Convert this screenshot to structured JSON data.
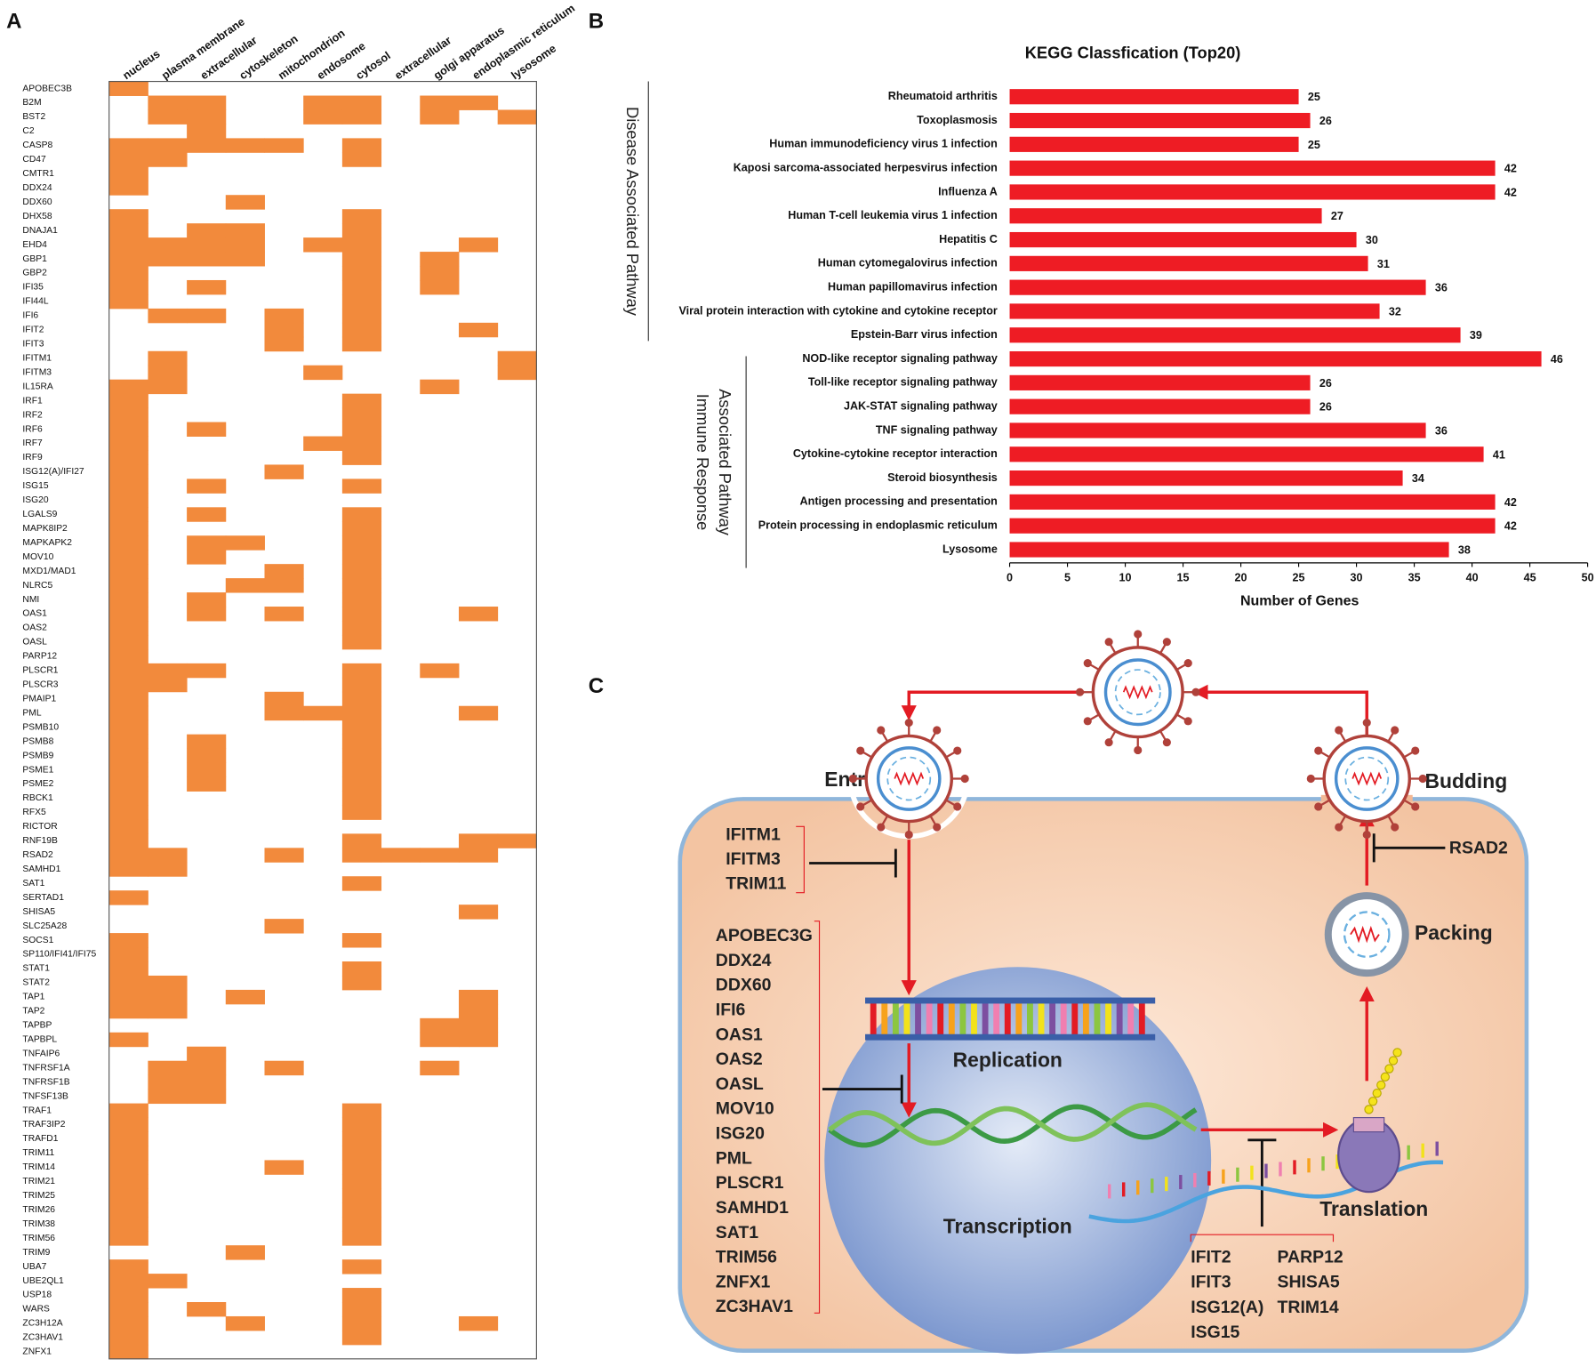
{
  "panel_labels": [
    "A",
    "B",
    "C"
  ],
  "chart_data": [
    {
      "type": "heatmap",
      "columns": [
        "nucleus",
        "plasma membrane",
        "extracellular",
        "cytoskeleton",
        "mitochondrion",
        "endosome",
        "cytosol",
        "extracellular",
        "golgi apparatus",
        "endoplasmic reticulum",
        "lysosome"
      ],
      "rows": [
        "APOBEC3B",
        "B2M",
        "BST2",
        "C2",
        "CASP8",
        "CD47",
        "CMTR1",
        "DDX24",
        "DDX60",
        "DHX58",
        "DNAJA1",
        "EHD4",
        "GBP1",
        "GBP2",
        "IFI35",
        "IFI44L",
        "IFI6",
        "IFIT2",
        "IFIT3",
        "IFITM1",
        "IFITM3",
        "IL15RA",
        "IRF1",
        "IRF2",
        "IRF6",
        "IRF7",
        "IRF9",
        "ISG12(A)/IFI27",
        "ISG15",
        "ISG20",
        "LGALS9",
        "MAPK8IP2",
        "MAPKAPK2",
        "MOV10",
        "MXD1/MAD1",
        "NLRC5",
        "NMI",
        "OAS1",
        "OAS2",
        "OASL",
        "PARP12",
        "PLSCR1",
        "PLSCR3",
        "PMAIP1",
        "PML",
        "PSMB10",
        "PSMB8",
        "PSMB9",
        "PSME1",
        "PSME2",
        "RBCK1",
        "RFX5",
        "RICTOR",
        "RNF19B",
        "RSAD2",
        "SAMHD1",
        "SAT1",
        "SERTAD1",
        "SHISA5",
        "SLC25A28",
        "SOCS1",
        "SP110/IFI41/IFI75",
        "STAT1",
        "STAT2",
        "TAP1",
        "TAP2",
        "TAPBP",
        "TAPBPL",
        "TNFAIP6",
        "TNFRSF1A",
        "TNFRSF1B",
        "TNFSF13B",
        "TRAF1",
        "TRAF3IP2",
        "TRAFD1",
        "TRIM11",
        "TRIM14",
        "TRIM21",
        "TRIM25",
        "TRIM26",
        "TRIM38",
        "TRIM56",
        "TRIM9",
        "UBA7",
        "UBE2QL1",
        "USP18",
        "WARS",
        "ZC3H12A",
        "ZC3HAV1",
        "ZNFX1"
      ],
      "values": [
        [
          1,
          0,
          0,
          0,
          0,
          0,
          0,
          0,
          0,
          0,
          0
        ],
        [
          0,
          1,
          1,
          0,
          0,
          1,
          1,
          0,
          1,
          1,
          0
        ],
        [
          0,
          1,
          1,
          0,
          0,
          1,
          1,
          0,
          1,
          0,
          1
        ],
        [
          0,
          0,
          1,
          0,
          0,
          0,
          0,
          0,
          0,
          0,
          0
        ],
        [
          1,
          1,
          1,
          1,
          1,
          0,
          1,
          0,
          0,
          0,
          0
        ],
        [
          1,
          1,
          0,
          0,
          0,
          0,
          1,
          0,
          0,
          0,
          0
        ],
        [
          1,
          0,
          0,
          0,
          0,
          0,
          0,
          0,
          0,
          0,
          0
        ],
        [
          1,
          0,
          0,
          0,
          0,
          0,
          0,
          0,
          0,
          0,
          0
        ],
        [
          0,
          0,
          0,
          1,
          0,
          0,
          0,
          0,
          0,
          0,
          0
        ],
        [
          1,
          0,
          0,
          0,
          0,
          0,
          1,
          0,
          0,
          0,
          0
        ],
        [
          1,
          0,
          1,
          1,
          0,
          0,
          1,
          0,
          0,
          0,
          0
        ],
        [
          1,
          1,
          1,
          1,
          0,
          1,
          1,
          0,
          0,
          1,
          0
        ],
        [
          1,
          1,
          1,
          1,
          0,
          0,
          1,
          0,
          1,
          0,
          0
        ],
        [
          1,
          0,
          0,
          0,
          0,
          0,
          1,
          0,
          1,
          0,
          0
        ],
        [
          1,
          0,
          1,
          0,
          0,
          0,
          1,
          0,
          1,
          0,
          0
        ],
        [
          1,
          0,
          0,
          0,
          0,
          0,
          1,
          0,
          0,
          0,
          0
        ],
        [
          0,
          1,
          1,
          0,
          1,
          0,
          1,
          0,
          0,
          0,
          0
        ],
        [
          0,
          0,
          0,
          0,
          1,
          0,
          1,
          0,
          0,
          1,
          0
        ],
        [
          0,
          0,
          0,
          0,
          1,
          0,
          1,
          0,
          0,
          0,
          0
        ],
        [
          0,
          1,
          0,
          0,
          0,
          0,
          0,
          0,
          0,
          0,
          1
        ],
        [
          0,
          1,
          0,
          0,
          0,
          1,
          0,
          0,
          0,
          0,
          1
        ],
        [
          1,
          1,
          0,
          0,
          0,
          0,
          0,
          0,
          1,
          0,
          0
        ],
        [
          1,
          0,
          0,
          0,
          0,
          0,
          1,
          0,
          0,
          0,
          0
        ],
        [
          1,
          0,
          0,
          0,
          0,
          0,
          1,
          0,
          0,
          0,
          0
        ],
        [
          1,
          0,
          1,
          0,
          0,
          0,
          1,
          0,
          0,
          0,
          0
        ],
        [
          1,
          0,
          0,
          0,
          0,
          1,
          1,
          0,
          0,
          0,
          0
        ],
        [
          1,
          0,
          0,
          0,
          0,
          0,
          1,
          0,
          0,
          0,
          0
        ],
        [
          1,
          0,
          0,
          0,
          1,
          0,
          0,
          0,
          0,
          0,
          0
        ],
        [
          1,
          0,
          1,
          0,
          0,
          0,
          1,
          0,
          0,
          0,
          0
        ],
        [
          1,
          0,
          0,
          0,
          0,
          0,
          0,
          0,
          0,
          0,
          0
        ],
        [
          1,
          0,
          1,
          0,
          0,
          0,
          1,
          0,
          0,
          0,
          0
        ],
        [
          1,
          0,
          0,
          0,
          0,
          0,
          1,
          0,
          0,
          0,
          0
        ],
        [
          1,
          0,
          1,
          1,
          0,
          0,
          1,
          0,
          0,
          0,
          0
        ],
        [
          1,
          0,
          1,
          0,
          0,
          0,
          1,
          0,
          0,
          0,
          0
        ],
        [
          1,
          0,
          0,
          0,
          1,
          0,
          1,
          0,
          0,
          0,
          0
        ],
        [
          1,
          0,
          0,
          1,
          1,
          0,
          1,
          0,
          0,
          0,
          0
        ],
        [
          1,
          0,
          1,
          0,
          0,
          0,
          1,
          0,
          0,
          0,
          0
        ],
        [
          1,
          0,
          1,
          0,
          1,
          0,
          1,
          0,
          0,
          1,
          0
        ],
        [
          1,
          0,
          0,
          0,
          0,
          0,
          1,
          0,
          0,
          0,
          0
        ],
        [
          1,
          0,
          0,
          0,
          0,
          0,
          1,
          0,
          0,
          0,
          0
        ],
        [
          1,
          0,
          0,
          0,
          0,
          0,
          0,
          0,
          0,
          0,
          0
        ],
        [
          1,
          1,
          1,
          0,
          0,
          0,
          1,
          0,
          1,
          0,
          0
        ],
        [
          1,
          1,
          0,
          0,
          0,
          0,
          1,
          0,
          0,
          0,
          0
        ],
        [
          1,
          0,
          0,
          0,
          1,
          0,
          1,
          0,
          0,
          0,
          0
        ],
        [
          1,
          0,
          0,
          0,
          1,
          1,
          1,
          0,
          0,
          1,
          0
        ],
        [
          1,
          0,
          0,
          0,
          0,
          0,
          1,
          0,
          0,
          0,
          0
        ],
        [
          1,
          0,
          1,
          0,
          0,
          0,
          1,
          0,
          0,
          0,
          0
        ],
        [
          1,
          0,
          1,
          0,
          0,
          0,
          1,
          0,
          0,
          0,
          0
        ],
        [
          1,
          0,
          1,
          0,
          0,
          0,
          1,
          0,
          0,
          0,
          0
        ],
        [
          1,
          0,
          1,
          0,
          0,
          0,
          1,
          0,
          0,
          0,
          0
        ],
        [
          1,
          0,
          0,
          0,
          0,
          0,
          1,
          0,
          0,
          0,
          0
        ],
        [
          1,
          0,
          0,
          0,
          0,
          0,
          1,
          0,
          0,
          0,
          0
        ],
        [
          1,
          0,
          0,
          0,
          0,
          0,
          0,
          0,
          0,
          0,
          0
        ],
        [
          1,
          0,
          0,
          0,
          0,
          0,
          1,
          0,
          0,
          1,
          1
        ],
        [
          1,
          1,
          0,
          0,
          1,
          0,
          1,
          1,
          1,
          1,
          0
        ],
        [
          1,
          1,
          0,
          0,
          0,
          0,
          0,
          0,
          0,
          0,
          0
        ],
        [
          0,
          0,
          0,
          0,
          0,
          0,
          1,
          0,
          0,
          0,
          0
        ],
        [
          1,
          0,
          0,
          0,
          0,
          0,
          0,
          0,
          0,
          0,
          0
        ],
        [
          0,
          0,
          0,
          0,
          0,
          0,
          0,
          0,
          0,
          1,
          0
        ],
        [
          0,
          0,
          0,
          0,
          1,
          0,
          0,
          0,
          0,
          0,
          0
        ],
        [
          1,
          0,
          0,
          0,
          0,
          0,
          1,
          0,
          0,
          0,
          0
        ],
        [
          1,
          0,
          0,
          0,
          0,
          0,
          0,
          0,
          0,
          0,
          0
        ],
        [
          1,
          0,
          0,
          0,
          0,
          0,
          1,
          0,
          0,
          0,
          0
        ],
        [
          1,
          1,
          0,
          0,
          0,
          0,
          1,
          0,
          0,
          0,
          0
        ],
        [
          1,
          1,
          0,
          1,
          0,
          0,
          0,
          0,
          0,
          1,
          0
        ],
        [
          1,
          1,
          0,
          0,
          0,
          0,
          0,
          0,
          0,
          1,
          0
        ],
        [
          0,
          0,
          0,
          0,
          0,
          0,
          0,
          0,
          1,
          1,
          0
        ],
        [
          1,
          0,
          0,
          0,
          0,
          0,
          0,
          0,
          1,
          1,
          0
        ],
        [
          0,
          0,
          1,
          0,
          0,
          0,
          0,
          0,
          0,
          0,
          0
        ],
        [
          0,
          1,
          1,
          0,
          1,
          0,
          0,
          0,
          1,
          0,
          0
        ],
        [
          0,
          1,
          1,
          0,
          0,
          0,
          0,
          0,
          0,
          0,
          0
        ],
        [
          0,
          1,
          1,
          0,
          0,
          0,
          0,
          0,
          0,
          0,
          0
        ],
        [
          1,
          0,
          0,
          0,
          0,
          0,
          1,
          0,
          0,
          0,
          0
        ],
        [
          1,
          0,
          0,
          0,
          0,
          0,
          1,
          0,
          0,
          0,
          0
        ],
        [
          1,
          0,
          0,
          0,
          0,
          0,
          1,
          0,
          0,
          0,
          0
        ],
        [
          1,
          0,
          0,
          0,
          0,
          0,
          1,
          0,
          0,
          0,
          0
        ],
        [
          1,
          0,
          0,
          0,
          1,
          0,
          1,
          0,
          0,
          0,
          0
        ],
        [
          1,
          0,
          0,
          0,
          0,
          0,
          1,
          0,
          0,
          0,
          0
        ],
        [
          1,
          0,
          0,
          0,
          0,
          0,
          1,
          0,
          0,
          0,
          0
        ],
        [
          1,
          0,
          0,
          0,
          0,
          0,
          1,
          0,
          0,
          0,
          0
        ],
        [
          1,
          0,
          0,
          0,
          0,
          0,
          1,
          0,
          0,
          0,
          0
        ],
        [
          1,
          0,
          0,
          0,
          0,
          0,
          1,
          0,
          0,
          0,
          0
        ],
        [
          0,
          0,
          0,
          1,
          0,
          0,
          0,
          0,
          0,
          0,
          0
        ],
        [
          1,
          0,
          0,
          0,
          0,
          0,
          1,
          0,
          0,
          0,
          0
        ],
        [
          1,
          1,
          0,
          0,
          0,
          0,
          0,
          0,
          0,
          0,
          0
        ],
        [
          1,
          0,
          0,
          0,
          0,
          0,
          1,
          0,
          0,
          0,
          0
        ],
        [
          1,
          0,
          1,
          0,
          0,
          0,
          1,
          0,
          0,
          0,
          0
        ],
        [
          1,
          0,
          0,
          1,
          0,
          0,
          1,
          0,
          0,
          1,
          0
        ],
        [
          1,
          0,
          0,
          0,
          0,
          0,
          1,
          0,
          0,
          0,
          0
        ],
        [
          1,
          0,
          0,
          0,
          0,
          0,
          0,
          0,
          0,
          0,
          0
        ]
      ],
      "color": "#f28a3c"
    },
    {
      "type": "bar",
      "orientation": "horizontal",
      "title": "KEGG Classfication (Top20)",
      "x_label": "Number of Genes",
      "categories": [
        "Rheumatoid arthritis",
        "Toxoplasmosis",
        "Human immunodeficiency virus 1 infection",
        "Kaposi sarcoma-associated herpesvirus infection",
        "Influenza A",
        "Human T-cell leukemia virus 1 infection",
        "Hepatitis C",
        "Human cytomegalovirus infection",
        "Human papillomavirus infection",
        "Viral protein interaction with cytokine and cytokine receptor",
        "Epstein-Barr virus infection",
        "NOD-like receptor signaling pathway",
        "Toll-like receptor signaling pathway",
        "JAK-STAT signaling pathway",
        "TNF signaling pathway",
        "Cytokine-cytokine receptor interaction",
        "Steroid biosynthesis",
        "Antigen processing and presentation",
        "Protein processing in endoplasmic reticulum",
        "Lysosome"
      ],
      "values": [
        25,
        26,
        25,
        42,
        42,
        27,
        30,
        31,
        36,
        32,
        39,
        46,
        26,
        26,
        36,
        41,
        34,
        42,
        42,
        38
      ],
      "color": "#ee1c24",
      "xlim": [
        0,
        50
      ],
      "xticks": [
        0,
        5,
        10,
        15,
        20,
        25,
        30,
        35,
        40,
        45,
        50
      ],
      "groups": [
        [
          "Disease Associated Pathway"
        ],
        [
          "Immune Response",
          "Associated Pathway"
        ]
      ]
    }
  ],
  "diagram": {
    "entry": "Entry",
    "budding": "Budding",
    "packing": "Packing",
    "replication": "Replication",
    "transcription": "Transcription",
    "translation": "Translation",
    "budding_inhibitor": "RSAD2",
    "entry_inhibitors": [
      "IFITM1",
      "IFITM3",
      "TRIM11"
    ],
    "replication_inhibitors": [
      "APOBEC3G",
      "DDX24",
      "DDX60",
      "IFI6",
      "OAS1",
      "OAS2",
      "OASL",
      "MOV10",
      "ISG20",
      "PML",
      "PLSCR1",
      "SAMHD1",
      "SAT1",
      "TRIM56",
      "ZNFX1",
      "ZC3HAV1"
    ],
    "translation_inhibitors": [
      [
        "IFIT2",
        "IFIT3",
        "ISG12(A)",
        "ISG15"
      ],
      [
        "PARP12",
        "SHISA5",
        "TRIM14"
      ]
    ]
  }
}
